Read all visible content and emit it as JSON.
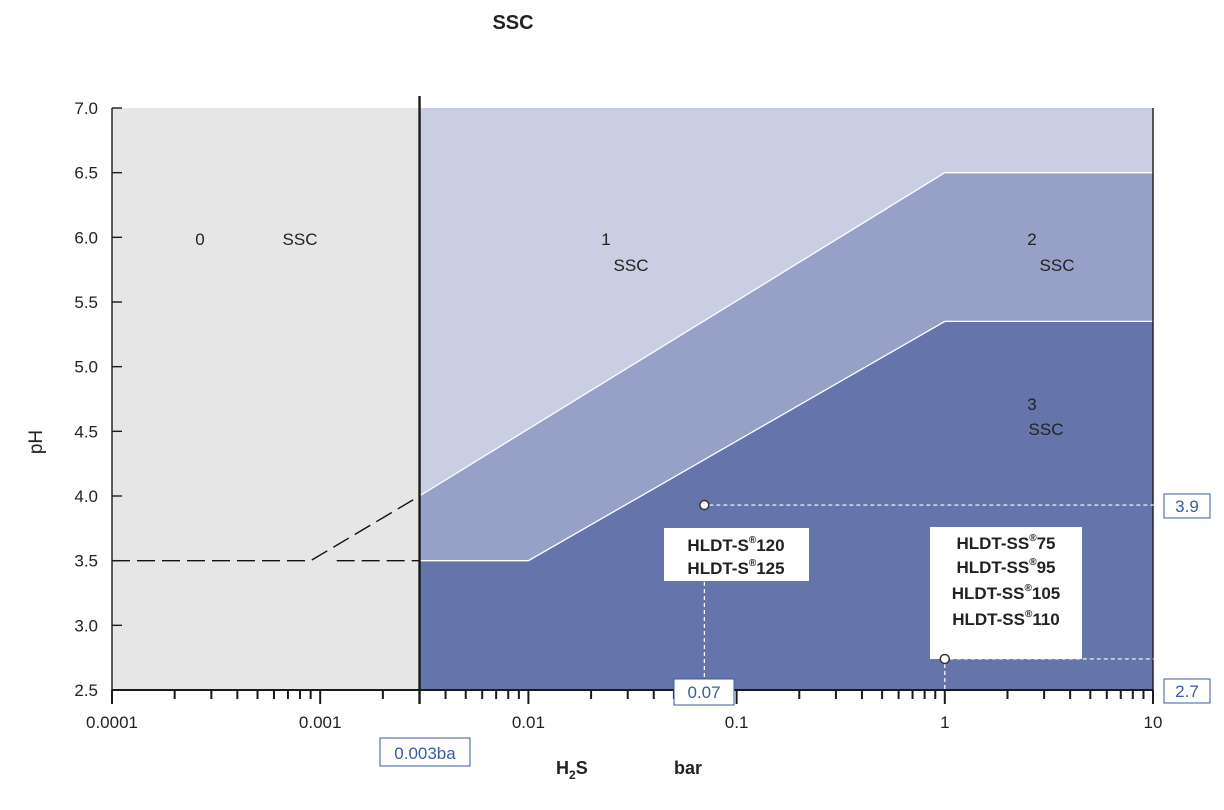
{
  "chart_data": {
    "type": "area",
    "title": "SSC",
    "xlabel": {
      "main": "H",
      "sub": "2",
      "tail": "S",
      "unit": "bar"
    },
    "ylabel": "pH",
    "x_scale": "log",
    "xlim": [
      0.0001,
      10
    ],
    "ylim": [
      2.5,
      7.0
    ],
    "x_ticks": [
      {
        "value": 0.0001,
        "label": "0.0001"
      },
      {
        "value": 0.001,
        "label": "0.001"
      },
      {
        "value": 0.01,
        "label": "0.01"
      },
      {
        "value": 0.1,
        "label": "0.1"
      },
      {
        "value": 1,
        "label": "1"
      },
      {
        "value": 10,
        "label": "10"
      }
    ],
    "y_ticks": [
      {
        "value": 2.5,
        "label": "2.5"
      },
      {
        "value": 3.0,
        "label": "3.0"
      },
      {
        "value": 3.5,
        "label": "3.5"
      },
      {
        "value": 4.0,
        "label": "4.0"
      },
      {
        "value": 4.5,
        "label": "4.5"
      },
      {
        "value": 5.0,
        "label": "5.0"
      },
      {
        "value": 5.5,
        "label": "5.5"
      },
      {
        "value": 6.0,
        "label": "6.0"
      },
      {
        "value": 6.5,
        "label": "6.5"
      },
      {
        "value": 7.0,
        "label": "7.0"
      }
    ],
    "regions": [
      {
        "region": "0",
        "label": "SSC",
        "color": "#e6e6e6",
        "x_range": [
          0.0001,
          0.003
        ]
      },
      {
        "region": "1",
        "label": "SSC",
        "color": "#c9cee2"
      },
      {
        "region": "2",
        "label": "SSC",
        "color": "#97a0c6"
      },
      {
        "region": "3",
        "label": "SSC",
        "color": "#6574aa"
      }
    ],
    "boundaries": [
      {
        "name": "region 0 limit",
        "x": 0.003
      },
      {
        "name": "regions 1/2",
        "points": [
          [
            0.003,
            4.0
          ],
          [
            1,
            6.5
          ],
          [
            10,
            6.5
          ]
        ]
      },
      {
        "name": "regions 2/3",
        "points": [
          [
            0.003,
            3.5
          ],
          [
            0.01,
            3.5
          ],
          [
            1,
            5.35
          ],
          [
            10,
            5.35
          ]
        ]
      },
      {
        "name": "dashed guide",
        "points": [
          [
            0.0001,
            3.5
          ],
          [
            0.0009,
            3.5
          ],
          [
            0.003,
            4.0
          ]
        ]
      }
    ],
    "x_marker": {
      "value": 0.003,
      "label": "0.003ba"
    },
    "points": [
      {
        "x": 0.07,
        "y": 3.93,
        "x_label": "0.07",
        "y_label": "3.9",
        "grades": [
          {
            "name": "HLDT-S",
            "reg": "®",
            "num": "120"
          },
          {
            "name": "HLDT-S",
            "reg": "®",
            "num": "125"
          }
        ]
      },
      {
        "x": 1,
        "y": 2.74,
        "x_label": "",
        "y_label": "2.7",
        "grades": [
          {
            "name": "HLDT-SS",
            "reg": "®",
            "num": "75"
          },
          {
            "name": "HLDT-SS",
            "reg": "®",
            "num": "95"
          },
          {
            "name": "HLDT-SS",
            "reg": "®",
            "num": "105"
          },
          {
            "name": "HLDT-SS",
            "reg": "®",
            "num": "110"
          }
        ]
      }
    ],
    "grid": false,
    "colors": {
      "axis": "#1a1a1a",
      "callout": "#3a5ba0",
      "boundary_line": "#ffffff"
    }
  }
}
